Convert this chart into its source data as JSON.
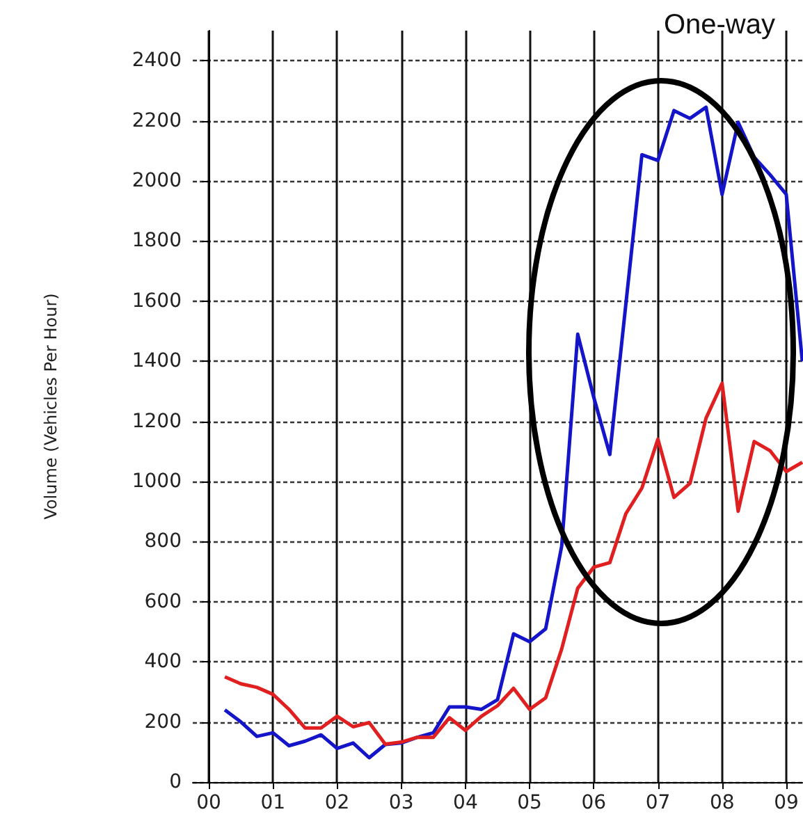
{
  "chart_data": {
    "type": "line",
    "ylabel": "Volume (Vehicles Per Hour)",
    "annotations": [
      "One-way"
    ],
    "x": [
      0.25,
      0.5,
      0.75,
      1,
      1.25,
      1.5,
      1.75,
      2,
      2.25,
      2.5,
      2.75,
      3,
      3.25,
      3.5,
      3.75,
      4,
      4.25,
      4.5,
      4.75,
      5,
      5.25,
      5.5,
      5.75,
      6,
      6.25,
      6.5,
      6.75,
      7,
      7.25,
      7.5,
      7.75,
      8,
      8.25,
      8.5,
      8.75,
      9,
      9.25
    ],
    "series": [
      {
        "color": "#1414c8",
        "values": [
          240,
          200,
          152,
          164,
          121,
          136,
          157,
          112,
          130,
          81,
          125,
          130,
          149,
          164,
          250,
          250,
          242,
          274,
          493,
          467,
          510,
          785,
          1490,
          1280,
          1090,
          1590,
          2087,
          2068,
          2234,
          2208,
          2245,
          1955,
          2195,
          2079,
          2020,
          1955,
          1400
        ]
      },
      {
        "color": "#e02020",
        "values": [
          350,
          327,
          315,
          292,
          242,
          180,
          180,
          219,
          184,
          198,
          126,
          133,
          149,
          149,
          214,
          172,
          219,
          254,
          312,
          242,
          280,
          443,
          645,
          715,
          730,
          893,
          978,
          1141,
          947,
          994,
          1211,
          1327,
          901,
          1133,
          1102,
          1033,
          1064
        ]
      }
    ],
    "xlim": [
      -0.25,
      9.25
    ],
    "xticks": [
      {
        "value": 0,
        "label": "00"
      },
      {
        "value": 1,
        "label": "01"
      },
      {
        "value": 2,
        "label": "02"
      },
      {
        "value": 3,
        "label": "03"
      },
      {
        "value": 4,
        "label": "04"
      },
      {
        "value": 5,
        "label": "05"
      },
      {
        "value": 6,
        "label": "06"
      },
      {
        "value": 7,
        "label": "07"
      },
      {
        "value": 8,
        "label": "08"
      },
      {
        "value": 9,
        "label": "09"
      }
    ],
    "ylim": [
      0,
      2500
    ],
    "yticks": [
      0,
      200,
      400,
      600,
      800,
      1000,
      1200,
      1400,
      1600,
      1800,
      2000,
      2200,
      2400
    ],
    "grid": true,
    "marker": "none",
    "line_style": "solid"
  }
}
